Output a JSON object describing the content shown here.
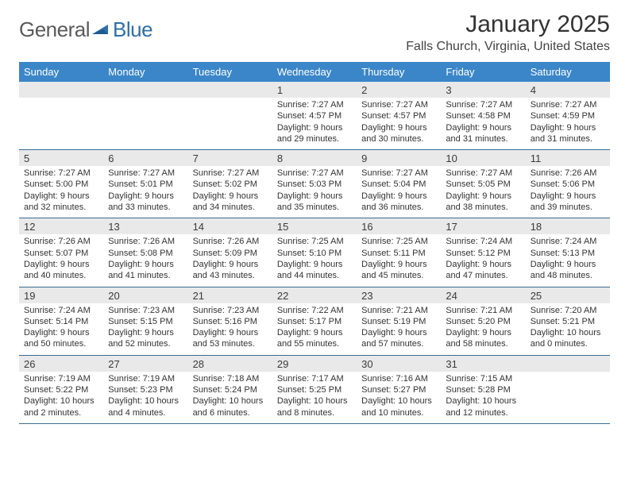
{
  "brand": {
    "word1": "General",
    "word2": "Blue",
    "triangle_color": "#2f6fa8",
    "text_gray": "#5a5a5a"
  },
  "title": "January 2025",
  "location": "Falls Church, Virginia, United States",
  "colors": {
    "header_bar": "#3b86c8",
    "header_text": "#ffffff",
    "daynum_bg": "#e9e9e9",
    "week_divider": "#3b6a94",
    "body_text": "#333333",
    "title_text": "#333333",
    "location_text": "#444444",
    "background": "#ffffff"
  },
  "weekdays": [
    "Sunday",
    "Monday",
    "Tuesday",
    "Wednesday",
    "Thursday",
    "Friday",
    "Saturday"
  ],
  "weeks": [
    [
      {
        "n": "",
        "sr": "",
        "ss": "",
        "dl": ""
      },
      {
        "n": "",
        "sr": "",
        "ss": "",
        "dl": ""
      },
      {
        "n": "",
        "sr": "",
        "ss": "",
        "dl": ""
      },
      {
        "n": "1",
        "sr": "Sunrise: 7:27 AM",
        "ss": "Sunset: 4:57 PM",
        "dl": "Daylight: 9 hours and 29 minutes."
      },
      {
        "n": "2",
        "sr": "Sunrise: 7:27 AM",
        "ss": "Sunset: 4:57 PM",
        "dl": "Daylight: 9 hours and 30 minutes."
      },
      {
        "n": "3",
        "sr": "Sunrise: 7:27 AM",
        "ss": "Sunset: 4:58 PM",
        "dl": "Daylight: 9 hours and 31 minutes."
      },
      {
        "n": "4",
        "sr": "Sunrise: 7:27 AM",
        "ss": "Sunset: 4:59 PM",
        "dl": "Daylight: 9 hours and 31 minutes."
      }
    ],
    [
      {
        "n": "5",
        "sr": "Sunrise: 7:27 AM",
        "ss": "Sunset: 5:00 PM",
        "dl": "Daylight: 9 hours and 32 minutes."
      },
      {
        "n": "6",
        "sr": "Sunrise: 7:27 AM",
        "ss": "Sunset: 5:01 PM",
        "dl": "Daylight: 9 hours and 33 minutes."
      },
      {
        "n": "7",
        "sr": "Sunrise: 7:27 AM",
        "ss": "Sunset: 5:02 PM",
        "dl": "Daylight: 9 hours and 34 minutes."
      },
      {
        "n": "8",
        "sr": "Sunrise: 7:27 AM",
        "ss": "Sunset: 5:03 PM",
        "dl": "Daylight: 9 hours and 35 minutes."
      },
      {
        "n": "9",
        "sr": "Sunrise: 7:27 AM",
        "ss": "Sunset: 5:04 PM",
        "dl": "Daylight: 9 hours and 36 minutes."
      },
      {
        "n": "10",
        "sr": "Sunrise: 7:27 AM",
        "ss": "Sunset: 5:05 PM",
        "dl": "Daylight: 9 hours and 38 minutes."
      },
      {
        "n": "11",
        "sr": "Sunrise: 7:26 AM",
        "ss": "Sunset: 5:06 PM",
        "dl": "Daylight: 9 hours and 39 minutes."
      }
    ],
    [
      {
        "n": "12",
        "sr": "Sunrise: 7:26 AM",
        "ss": "Sunset: 5:07 PM",
        "dl": "Daylight: 9 hours and 40 minutes."
      },
      {
        "n": "13",
        "sr": "Sunrise: 7:26 AM",
        "ss": "Sunset: 5:08 PM",
        "dl": "Daylight: 9 hours and 41 minutes."
      },
      {
        "n": "14",
        "sr": "Sunrise: 7:26 AM",
        "ss": "Sunset: 5:09 PM",
        "dl": "Daylight: 9 hours and 43 minutes."
      },
      {
        "n": "15",
        "sr": "Sunrise: 7:25 AM",
        "ss": "Sunset: 5:10 PM",
        "dl": "Daylight: 9 hours and 44 minutes."
      },
      {
        "n": "16",
        "sr": "Sunrise: 7:25 AM",
        "ss": "Sunset: 5:11 PM",
        "dl": "Daylight: 9 hours and 45 minutes."
      },
      {
        "n": "17",
        "sr": "Sunrise: 7:24 AM",
        "ss": "Sunset: 5:12 PM",
        "dl": "Daylight: 9 hours and 47 minutes."
      },
      {
        "n": "18",
        "sr": "Sunrise: 7:24 AM",
        "ss": "Sunset: 5:13 PM",
        "dl": "Daylight: 9 hours and 48 minutes."
      }
    ],
    [
      {
        "n": "19",
        "sr": "Sunrise: 7:24 AM",
        "ss": "Sunset: 5:14 PM",
        "dl": "Daylight: 9 hours and 50 minutes."
      },
      {
        "n": "20",
        "sr": "Sunrise: 7:23 AM",
        "ss": "Sunset: 5:15 PM",
        "dl": "Daylight: 9 hours and 52 minutes."
      },
      {
        "n": "21",
        "sr": "Sunrise: 7:23 AM",
        "ss": "Sunset: 5:16 PM",
        "dl": "Daylight: 9 hours and 53 minutes."
      },
      {
        "n": "22",
        "sr": "Sunrise: 7:22 AM",
        "ss": "Sunset: 5:17 PM",
        "dl": "Daylight: 9 hours and 55 minutes."
      },
      {
        "n": "23",
        "sr": "Sunrise: 7:21 AM",
        "ss": "Sunset: 5:19 PM",
        "dl": "Daylight: 9 hours and 57 minutes."
      },
      {
        "n": "24",
        "sr": "Sunrise: 7:21 AM",
        "ss": "Sunset: 5:20 PM",
        "dl": "Daylight: 9 hours and 58 minutes."
      },
      {
        "n": "25",
        "sr": "Sunrise: 7:20 AM",
        "ss": "Sunset: 5:21 PM",
        "dl": "Daylight: 10 hours and 0 minutes."
      }
    ],
    [
      {
        "n": "26",
        "sr": "Sunrise: 7:19 AM",
        "ss": "Sunset: 5:22 PM",
        "dl": "Daylight: 10 hours and 2 minutes."
      },
      {
        "n": "27",
        "sr": "Sunrise: 7:19 AM",
        "ss": "Sunset: 5:23 PM",
        "dl": "Daylight: 10 hours and 4 minutes."
      },
      {
        "n": "28",
        "sr": "Sunrise: 7:18 AM",
        "ss": "Sunset: 5:24 PM",
        "dl": "Daylight: 10 hours and 6 minutes."
      },
      {
        "n": "29",
        "sr": "Sunrise: 7:17 AM",
        "ss": "Sunset: 5:25 PM",
        "dl": "Daylight: 10 hours and 8 minutes."
      },
      {
        "n": "30",
        "sr": "Sunrise: 7:16 AM",
        "ss": "Sunset: 5:27 PM",
        "dl": "Daylight: 10 hours and 10 minutes."
      },
      {
        "n": "31",
        "sr": "Sunrise: 7:15 AM",
        "ss": "Sunset: 5:28 PM",
        "dl": "Daylight: 10 hours and 12 minutes."
      },
      {
        "n": "",
        "sr": "",
        "ss": "",
        "dl": ""
      }
    ]
  ]
}
